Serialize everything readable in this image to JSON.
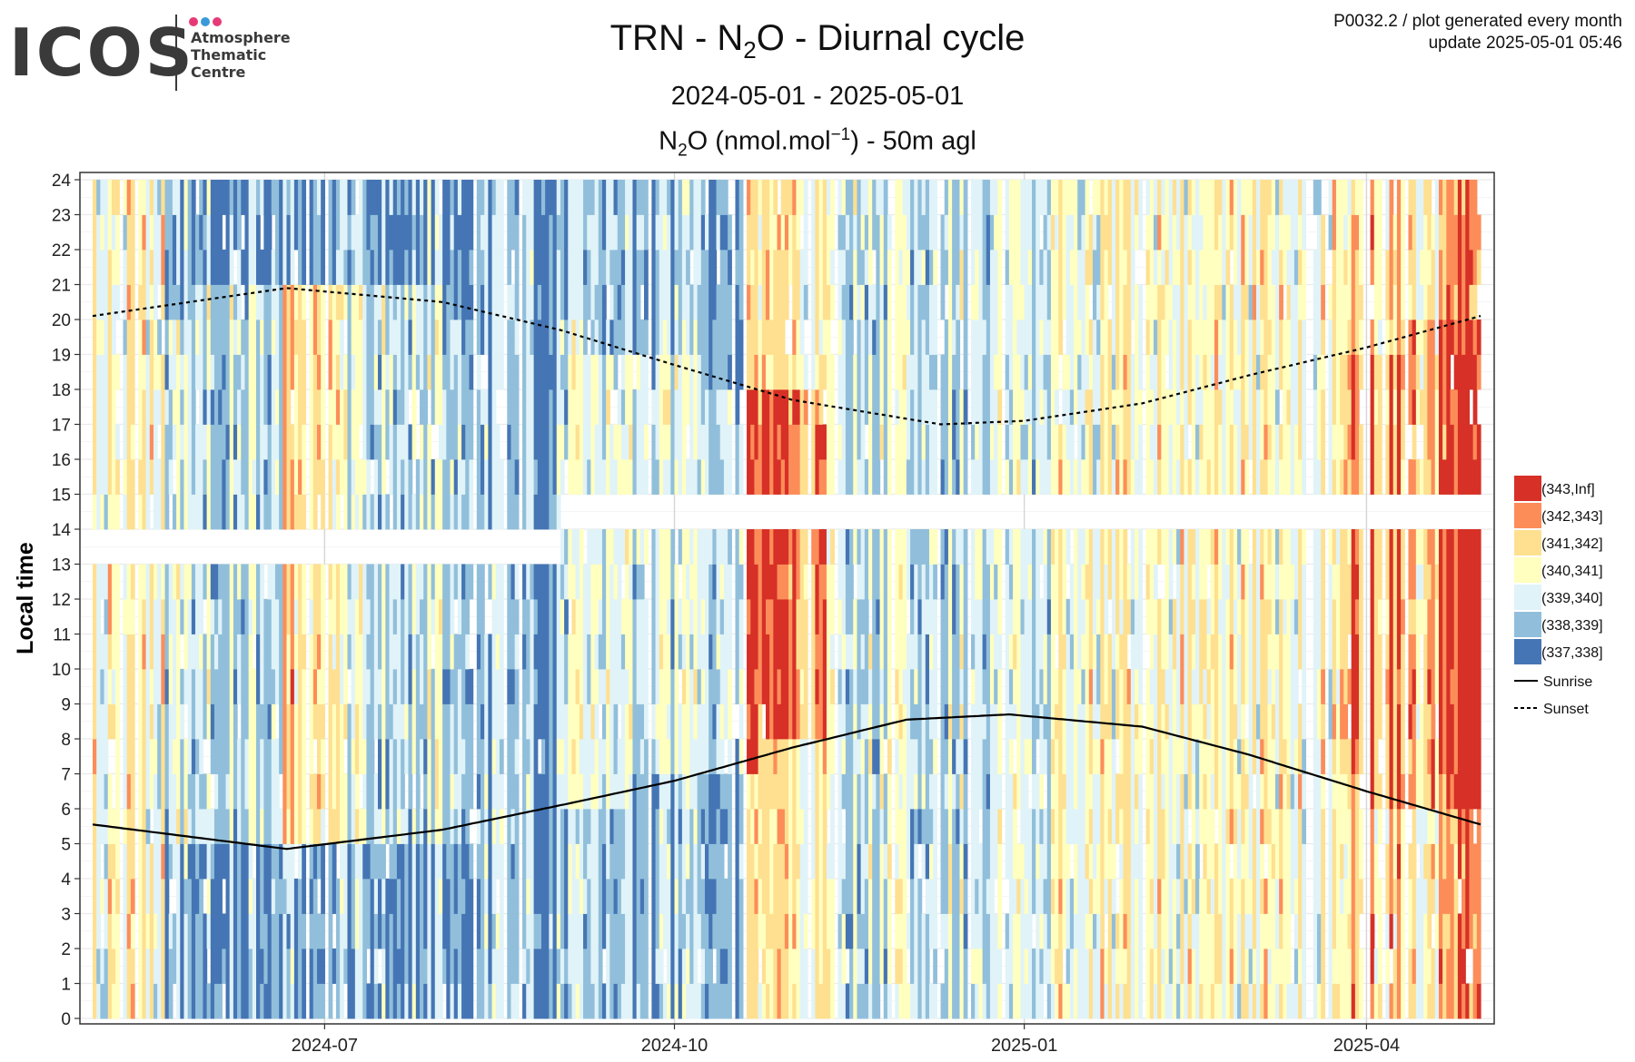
{
  "header": {
    "logo_word": "ICOS",
    "logo_lines": [
      "Atmosphere",
      "Thematic",
      "Centre"
    ],
    "logo_dot_colors": [
      "#e63a77",
      "#3a9ad9",
      "#e63a77"
    ],
    "note_line1": "P0032.2 / plot generated every month",
    "note_line2": "update  2025-05-01 05:46"
  },
  "chart_data": {
    "type": "heatmap",
    "title_parts": {
      "pre": "TRN - N",
      "sub": "2",
      "post": "O - Diurnal cycle"
    },
    "subtitle": "2024-05-01 - 2025-05-01",
    "variable_label_parts": {
      "pre": "N",
      "sub": "2",
      "mid": "O (nmol.mol",
      "sup": "−1",
      "post": ") - 50m agl"
    },
    "xlabel": "",
    "ylabel": "Local time",
    "x_range": [
      "2024-05-01",
      "2025-05-01"
    ],
    "x_ticks": [
      "2024-07",
      "2024-10",
      "2025-01",
      "2025-04"
    ],
    "x_tick_dates": [
      "2024-07-01",
      "2024-10-01",
      "2025-01-01",
      "2025-04-01"
    ],
    "ylim": [
      0,
      24
    ],
    "y_ticks": [
      0,
      1,
      2,
      3,
      4,
      5,
      6,
      7,
      8,
      9,
      10,
      11,
      12,
      13,
      14,
      15,
      16,
      17,
      18,
      19,
      20,
      21,
      22,
      23,
      24
    ],
    "grid": true,
    "legend_position": "right",
    "classes": [
      {
        "label": "(343,Inf]",
        "color": "#d73027"
      },
      {
        "label": "(342,343]",
        "color": "#fc8d59"
      },
      {
        "label": "(341,342]",
        "color": "#fee090"
      },
      {
        "label": "(340,341]",
        "color": "#ffffbf"
      },
      {
        "label": "(339,340]",
        "color": "#e0f3f8"
      },
      {
        "label": "(338,339]",
        "color": "#91bfdb"
      },
      {
        "label": "(337,338]",
        "color": "#4575b4"
      }
    ],
    "lines": [
      {
        "name": "Sunrise",
        "style": "solid",
        "x": [
          "2024-05-01",
          "2024-06-21",
          "2024-08-01",
          "2024-09-01",
          "2024-10-01",
          "2024-11-01",
          "2024-12-01",
          "2024-12-28",
          "2025-02-01",
          "2025-03-01",
          "2025-04-01",
          "2025-05-01"
        ],
        "y": [
          5.55,
          4.85,
          5.4,
          6.1,
          6.8,
          7.75,
          8.55,
          8.7,
          8.35,
          7.55,
          6.5,
          5.55
        ]
      },
      {
        "name": "Sunset",
        "style": "dashed",
        "x": [
          "2024-05-01",
          "2024-06-21",
          "2024-08-01",
          "2024-09-01",
          "2024-10-01",
          "2024-11-01",
          "2024-12-10",
          "2025-01-01",
          "2025-02-01",
          "2025-03-01",
          "2025-04-01",
          "2025-05-01"
        ],
        "y": [
          20.1,
          20.9,
          20.5,
          19.7,
          18.7,
          17.7,
          17.0,
          17.1,
          17.6,
          18.4,
          19.2,
          20.1
        ]
      }
    ],
    "missing_band": [
      {
        "from": "2024-05-01",
        "to": "2024-09-01",
        "hours": [
          13,
          14
        ]
      },
      {
        "from": "2024-09-01",
        "to": "2025-05-01",
        "hours": [
          14,
          15
        ]
      }
    ],
    "daily_class_pattern": [
      {
        "from": "2024-05-01",
        "to": "2024-05-20",
        "night": 3,
        "day": 3
      },
      {
        "from": "2024-05-20",
        "to": "2024-06-20",
        "night": 5,
        "day": 4
      },
      {
        "from": "2024-06-20",
        "to": "2024-07-05",
        "night": 5,
        "day": 2
      },
      {
        "from": "2024-07-05",
        "to": "2024-08-10",
        "night": 5,
        "day": 4
      },
      {
        "from": "2024-08-10",
        "to": "2024-09-01",
        "night": 5,
        "day": 5
      },
      {
        "from": "2024-09-01",
        "to": "2024-10-20",
        "night": 5,
        "day": 4
      },
      {
        "from": "2024-10-20",
        "to": "2024-11-10",
        "night": 3,
        "day": 1
      },
      {
        "from": "2024-11-10",
        "to": "2025-01-10",
        "night": 4,
        "day": 4
      },
      {
        "from": "2025-01-10",
        "to": "2025-03-25",
        "night": 3,
        "day": 3
      },
      {
        "from": "2025-03-25",
        "to": "2025-04-10",
        "night": 2,
        "day": 1
      },
      {
        "from": "2025-04-10",
        "to": "2025-04-20",
        "night": 3,
        "day": 2
      },
      {
        "from": "2025-04-20",
        "to": "2025-05-01",
        "night": 1,
        "day": 0
      }
    ]
  }
}
